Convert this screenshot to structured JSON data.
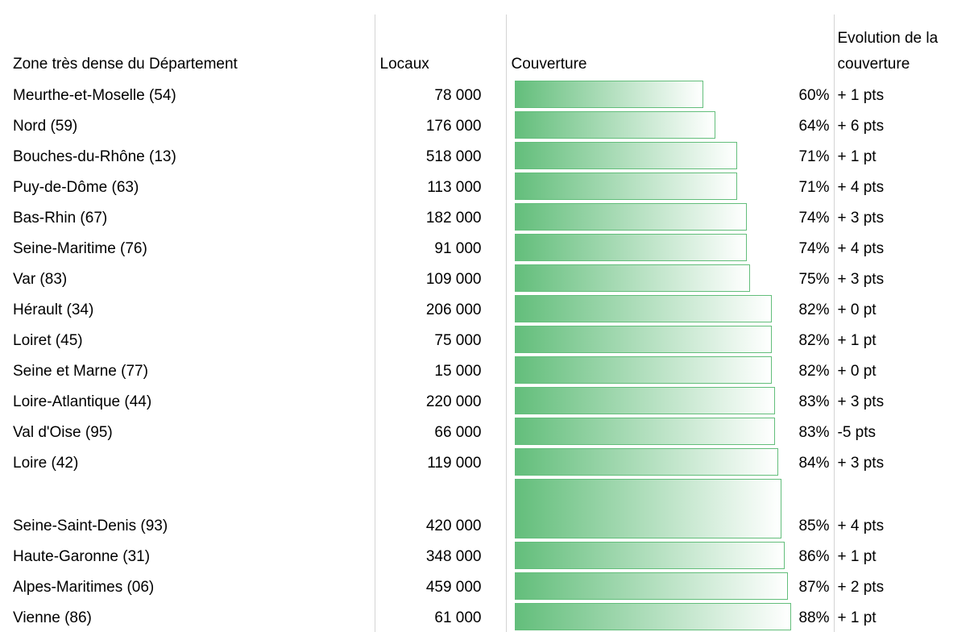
{
  "table": {
    "columns": [
      "Zone très dense du Département",
      "Locaux",
      "Couverture",
      "Evolution de la couverture"
    ],
    "rows": [
      {
        "zone": "Meurthe-et-Moselle (54)",
        "locaux": "78 000",
        "coverage": 60,
        "coverage_label": "60%",
        "evolution": "+ 1 pts"
      },
      {
        "zone": "Nord (59)",
        "locaux": "176 000",
        "coverage": 64,
        "coverage_label": "64%",
        "evolution": "+ 6 pts"
      },
      {
        "zone": "Bouches-du-Rhône (13)",
        "locaux": "518 000",
        "coverage": 71,
        "coverage_label": "71%",
        "evolution": "+ 1 pt"
      },
      {
        "zone": "Puy-de-Dôme (63)",
        "locaux": "113 000",
        "coverage": 71,
        "coverage_label": "71%",
        "evolution": "+ 4 pts"
      },
      {
        "zone": "Bas-Rhin (67)",
        "locaux": "182 000",
        "coverage": 74,
        "coverage_label": "74%",
        "evolution": "+ 3 pts"
      },
      {
        "zone": "Seine-Maritime (76)",
        "locaux": "91 000",
        "coverage": 74,
        "coverage_label": "74%",
        "evolution": "+ 4 pts"
      },
      {
        "zone": "Var (83)",
        "locaux": "109 000",
        "coverage": 75,
        "coverage_label": "75%",
        "evolution": "+ 3 pts"
      },
      {
        "zone": "Hérault (34)",
        "locaux": "206 000",
        "coverage": 82,
        "coverage_label": "82%",
        "evolution": "+ 0 pt"
      },
      {
        "zone": "Loiret (45)",
        "locaux": "75 000",
        "coverage": 82,
        "coverage_label": "82%",
        "evolution": "+ 1 pt"
      },
      {
        "zone": "Seine et Marne (77)",
        "locaux": "15 000",
        "coverage": 82,
        "coverage_label": "82%",
        "evolution": "+ 0 pt"
      },
      {
        "zone": "Loire-Atlantique (44)",
        "locaux": "220 000",
        "coverage": 83,
        "coverage_label": "83%",
        "evolution": "+ 3 pts"
      },
      {
        "zone": "Val d'Oise (95)",
        "locaux": "66 000",
        "coverage": 83,
        "coverage_label": "83%",
        "evolution": "-5 pts"
      },
      {
        "zone": "Loire (42)",
        "locaux": "119 000",
        "coverage": 84,
        "coverage_label": "84%",
        "evolution": "+ 3 pts"
      },
      {
        "zone": "Seine-Saint-Denis (93)",
        "locaux": "420 000",
        "coverage": 85,
        "coverage_label": "85%",
        "evolution": "+ 4 pts"
      },
      {
        "zone": "Haute-Garonne (31)",
        "locaux": "348 000",
        "coverage": 86,
        "coverage_label": "86%",
        "evolution": "+ 1 pt"
      },
      {
        "zone": "Alpes-Maritimes (06)",
        "locaux": "459 000",
        "coverage": 87,
        "coverage_label": "87%",
        "evolution": "+ 2 pts"
      },
      {
        "zone": "Vienne (86)",
        "locaux": "61 000",
        "coverage": 88,
        "coverage_label": "88%",
        "evolution": "+ 1 pt"
      }
    ]
  }
}
